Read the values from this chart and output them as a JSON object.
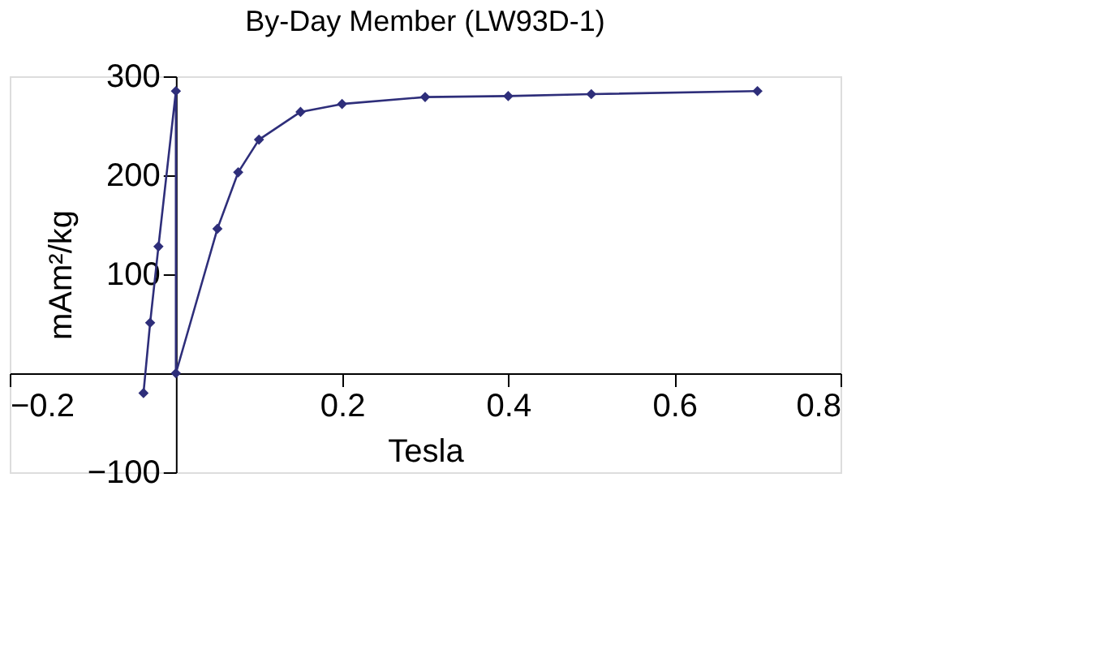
{
  "chart_data": {
    "type": "line",
    "title": "By-Day Member (LW93D-1)",
    "xlabel": "Tesla",
    "ylabel": "mAm²/kg",
    "xlim": [
      -0.2,
      0.8
    ],
    "xticks": [
      -0.2,
      0.2,
      0.4,
      0.6,
      0.8
    ],
    "ylim": [
      -100,
      300
    ],
    "yticks": [
      -100,
      100,
      200,
      300
    ],
    "marker": "diamond",
    "line_style": "solid",
    "grid": false,
    "series": [
      {
        "color": "#2e2e7a",
        "x": [
          -0.039,
          -0.031,
          -0.021,
          0,
          0,
          0.05,
          0.075,
          0.1,
          0.15,
          0.2,
          0.3,
          0.4,
          0.5,
          0.7
        ],
        "values": [
          -20,
          51,
          128,
          285,
          0,
          146,
          203,
          236,
          264,
          272,
          279,
          280,
          282,
          285
        ]
      }
    ]
  }
}
